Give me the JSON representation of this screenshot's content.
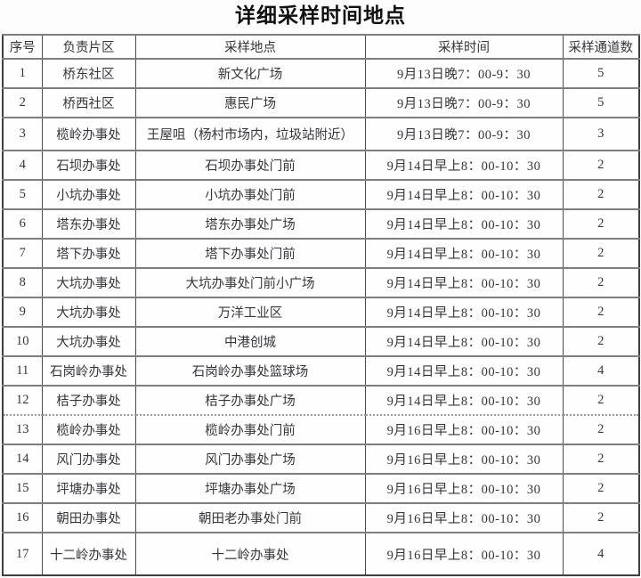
{
  "title": "详细采样时间地点",
  "table": {
    "headers": [
      "序号",
      "负责片区",
      "采样地点",
      "采样时间",
      "采样通道数"
    ],
    "rows": [
      {
        "index": "1",
        "area": "桥东社区",
        "location": "新文化广场",
        "time": "9月13日晚7：00-9：30",
        "channels": "5"
      },
      {
        "index": "2",
        "area": "桥西社区",
        "location": "惠民广场",
        "time": "9月13日晚7：00-9：30",
        "channels": "5"
      },
      {
        "index": "3",
        "area": "榄岭办事处",
        "location": "王屋咀（杨村市场内，垃圾站附近）",
        "time": "9月13日晚7：00-9：30",
        "channels": "3"
      },
      {
        "index": "4",
        "area": "石坝办事处",
        "location": "石坝办事处门前",
        "time": "9月14日早上8：00-10：30",
        "channels": "2"
      },
      {
        "index": "5",
        "area": "小坑办事处",
        "location": "小坑办事处门前",
        "time": "9月14日早上8：00-10：30",
        "channels": "2"
      },
      {
        "index": "6",
        "area": "塔东办事处",
        "location": "塔东办事处广场",
        "time": "9月14日早上8：00-10：30",
        "channels": "2"
      },
      {
        "index": "7",
        "area": "塔下办事处",
        "location": "塔下办事处门前",
        "time": "9月14日早上8：00-10：30",
        "channels": "2"
      },
      {
        "index": "8",
        "area": "大坑办事处",
        "location": "大坑办事处门前小广场",
        "time": "9月14日早上8：00-10：30",
        "channels": "2"
      },
      {
        "index": "9",
        "area": "大坑办事处",
        "location": "万洋工业区",
        "time": "9月14日早上8：00-10：30",
        "channels": "2"
      },
      {
        "index": "10",
        "area": "大坑办事处",
        "location": "中港创城",
        "time": "9月14日早上8：00-10：30",
        "channels": "2"
      },
      {
        "index": "11",
        "area": "石岗岭办事处",
        "location": "石岗岭办事处篮球场",
        "time": "9月14日早上8：00-10：30",
        "channels": "4"
      },
      {
        "index": "12",
        "area": "桔子办事处",
        "location": "桔子办事处广场",
        "time": "9月14日早上8：00-10：30",
        "channels": "2"
      },
      {
        "index": "13",
        "area": "榄岭办事处",
        "location": "榄岭办事处门前",
        "time": "9月16日早上8：00-10：30",
        "channels": "2"
      },
      {
        "index": "14",
        "area": "风门办事处",
        "location": "风门办事处广场",
        "time": "9月16日早上8：00-10：30",
        "channels": "2"
      },
      {
        "index": "15",
        "area": "坪塘办事处",
        "location": "坪塘办事处广场",
        "time": "9月16日早上8：00-10：30",
        "channels": "2"
      },
      {
        "index": "16",
        "area": "朝田办事处",
        "location": "朝田老办事处门前",
        "time": "9月16日早上8：00-10：30",
        "channels": "2"
      },
      {
        "index": "17",
        "area": "十二岭办事处",
        "location": "十二岭办事处",
        "time": "9月16日早上8：00-10：30",
        "channels": "4"
      }
    ]
  }
}
